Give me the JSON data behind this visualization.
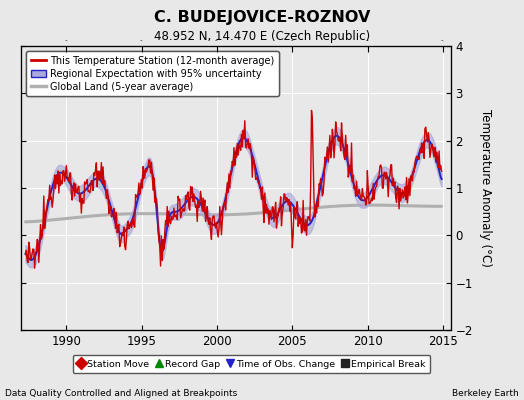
{
  "title": "C. BUDEJOVICE-ROZNOV",
  "subtitle": "48.952 N, 14.470 E (Czech Republic)",
  "xlabel_left": "Data Quality Controlled and Aligned at Breakpoints",
  "xlabel_right": "Berkeley Earth",
  "ylabel": "Temperature Anomaly (°C)",
  "xlim": [
    1987.0,
    2015.5
  ],
  "ylim": [
    -2.0,
    4.0
  ],
  "yticks": [
    -2,
    -1,
    0,
    1,
    2,
    3,
    4
  ],
  "xticks": [
    1990,
    1995,
    2000,
    2005,
    2010,
    2015
  ],
  "bg_color": "#e8e8e8",
  "plot_bg_color": "#e8e8e8",
  "red_color": "#cc0000",
  "blue_color": "#2222cc",
  "blue_fill_color": "#aaaadd",
  "gray_color": "#b0b0b0",
  "legend_items": [
    {
      "label": "This Temperature Station (12-month average)",
      "color": "#cc0000",
      "lw": 2
    },
    {
      "label": "Regional Expectation with 95% uncertainty",
      "color": "#2222cc",
      "lw": 2
    },
    {
      "label": "Global Land (5-year average)",
      "color": "#b0b0b0",
      "lw": 2
    }
  ],
  "marker_legend": [
    {
      "label": "Station Move",
      "marker": "D",
      "color": "#cc0000"
    },
    {
      "label": "Record Gap",
      "marker": "^",
      "color": "#008800"
    },
    {
      "label": "Time of Obs. Change",
      "marker": "v",
      "color": "#2222cc"
    },
    {
      "label": "Empirical Break",
      "marker": "s",
      "color": "#222222"
    }
  ]
}
